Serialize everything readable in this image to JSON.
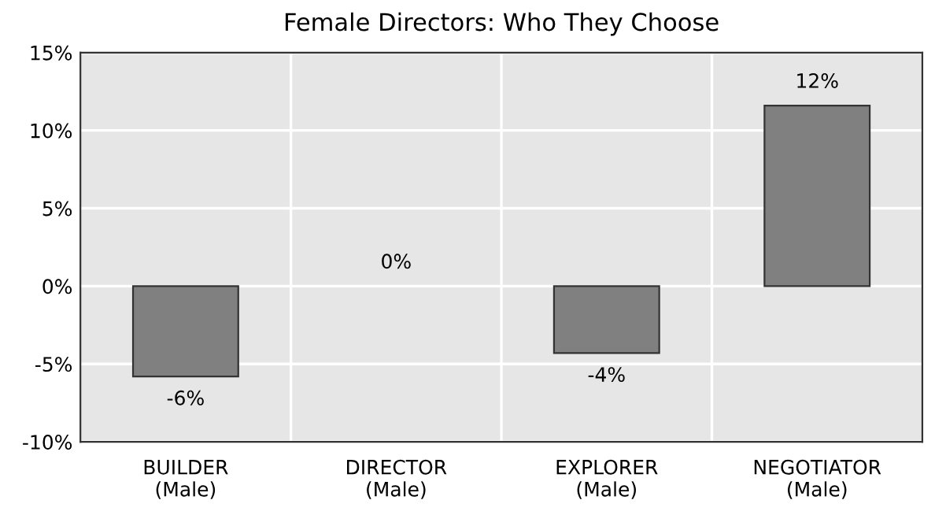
{
  "chart_data": {
    "type": "bar",
    "title": "Female Directors: Who They Choose",
    "categories": [
      "BUILDER\n(Male)",
      "DIRECTOR\n(Male)",
      "EXPLORER\n(Male)",
      "NEGOTIATOR\n(Male)"
    ],
    "values": [
      -5.8,
      0,
      -4.3,
      11.6
    ],
    "value_labels": [
      "-6%",
      "0%",
      "-4%",
      "12%"
    ],
    "color": "#808080",
    "ylim": [
      -10,
      15
    ],
    "yticks": [
      {
        "value": -10,
        "label": "-10%"
      },
      {
        "value": -5,
        "label": "-5%"
      },
      {
        "value": 0,
        "label": "0%"
      },
      {
        "value": 5,
        "label": "5%"
      },
      {
        "value": 10,
        "label": "10%"
      },
      {
        "value": 15,
        "label": "15%"
      }
    ],
    "grid": true
  }
}
